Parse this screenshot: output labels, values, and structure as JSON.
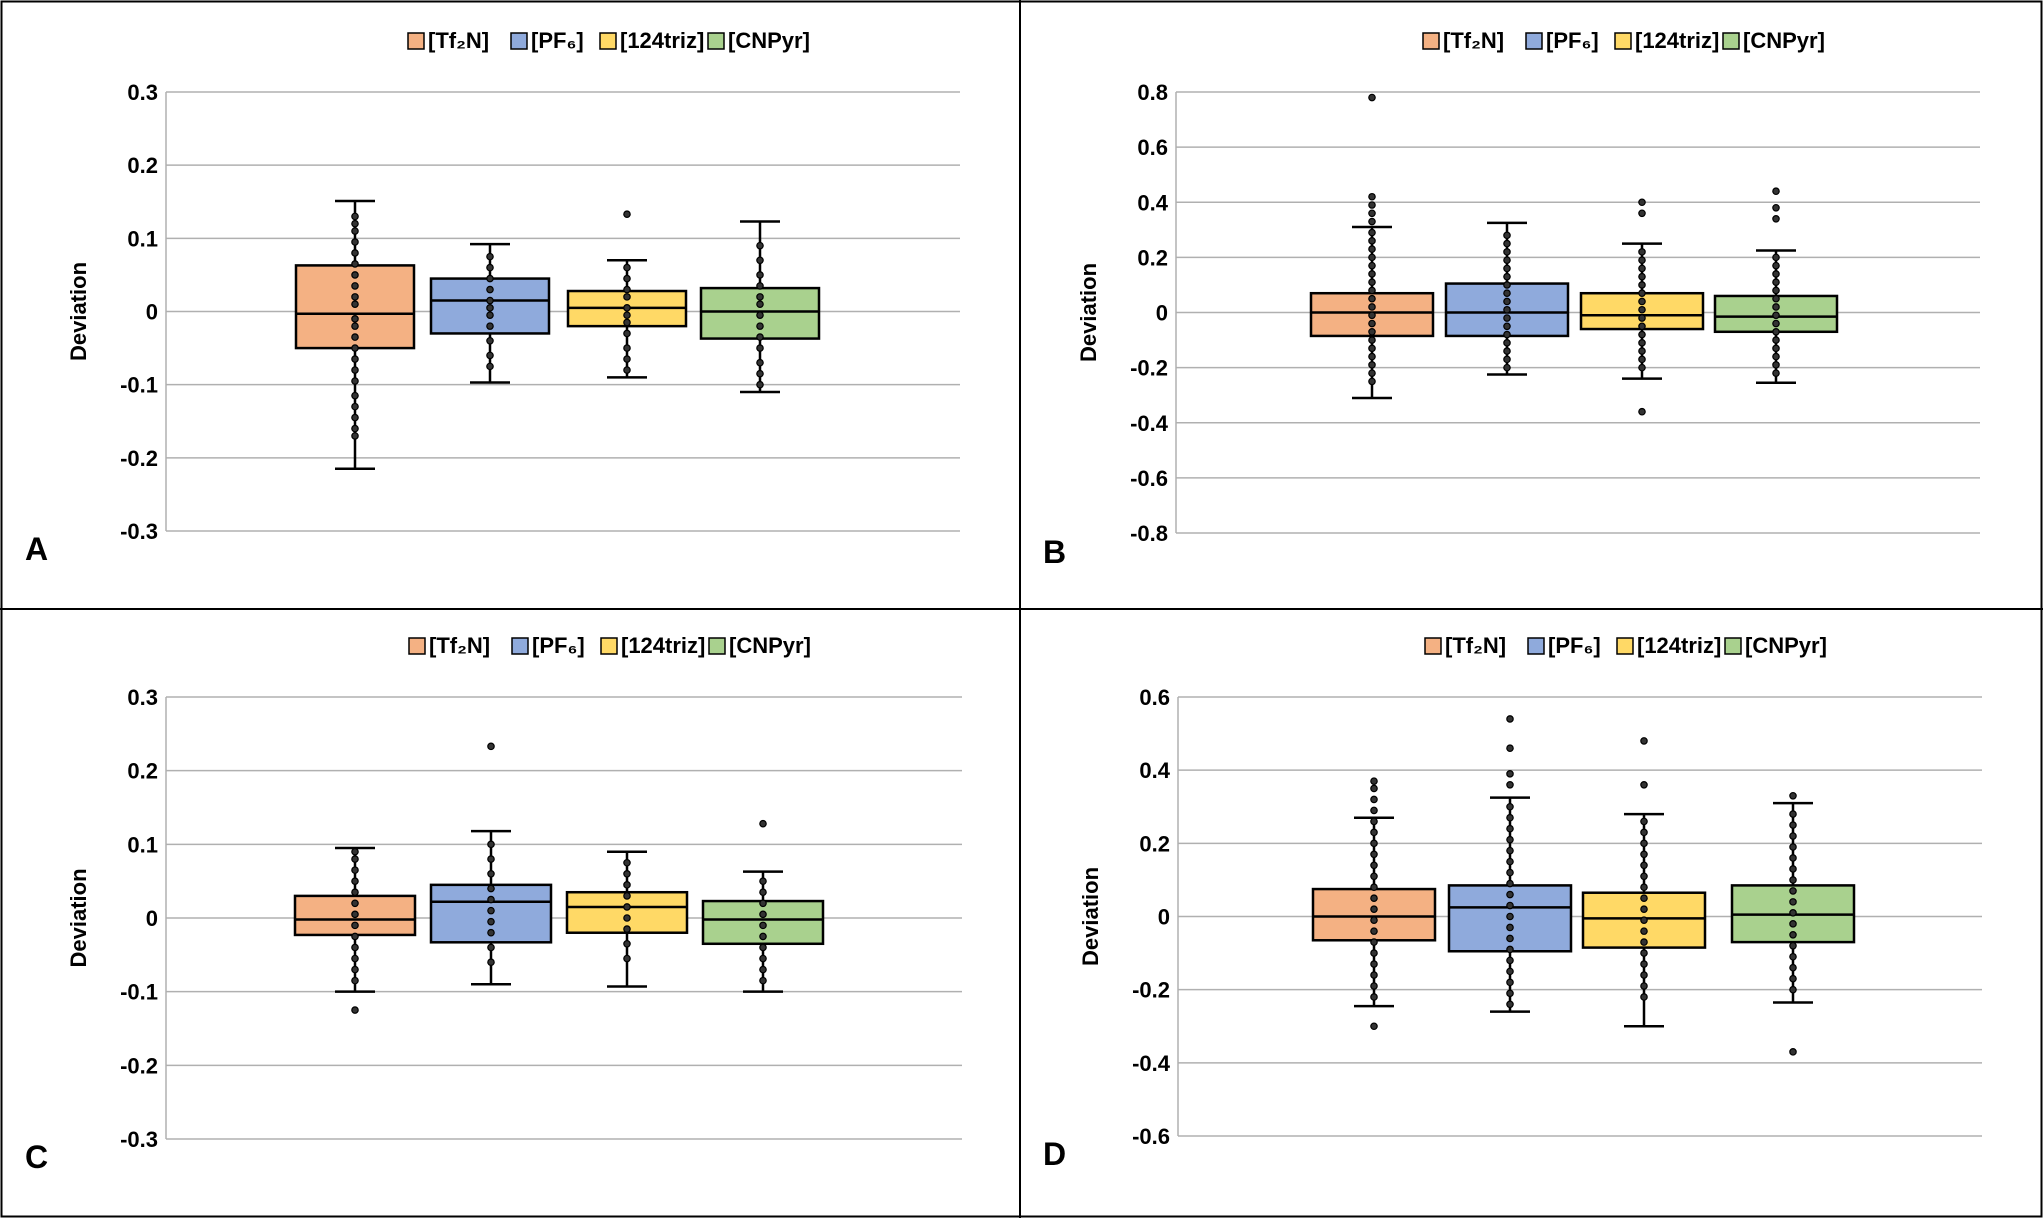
{
  "legend": [
    {
      "label": "[Tf₂N]",
      "color": "#f4b183"
    },
    {
      "label": "[PF₆]",
      "color": "#8faadc"
    },
    {
      "label": "[124triz]",
      "color": "#ffd966"
    },
    {
      "label": "[CNPyr]",
      "color": "#a9d18e"
    }
  ],
  "chart_data": [
    {
      "panel": "A",
      "type": "box",
      "ylabel": "Deviation",
      "ylim": [
        -0.3,
        0.3
      ],
      "yticks": [
        "0.3",
        "0.2",
        "0.1",
        "0",
        "-0.1",
        "-0.2",
        "-0.3"
      ],
      "grid": true,
      "legend_position": "top",
      "series": [
        {
          "name": "[Tf₂N]",
          "whisker_low": -0.215,
          "q1": -0.05,
          "median": -0.003,
          "q3": 0.063,
          "whisker_high": 0.151,
          "points": [
            0.13,
            0.12,
            0.11,
            0.095,
            0.08,
            0.065,
            0.05,
            0.035,
            0.02,
            0.01,
            -0.01,
            -0.02,
            -0.035,
            -0.05,
            -0.065,
            -0.08,
            -0.095,
            -0.115,
            -0.13,
            -0.145,
            -0.16,
            -0.17
          ]
        },
        {
          "name": "[PF₆]",
          "whisker_low": -0.097,
          "q1": -0.03,
          "median": 0.015,
          "q3": 0.045,
          "whisker_high": 0.092,
          "points": [
            0.075,
            0.06,
            0.045,
            0.03,
            0.015,
            0.005,
            -0.005,
            -0.02,
            -0.04,
            -0.06,
            -0.075
          ]
        },
        {
          "name": "[124triz]",
          "whisker_low": -0.09,
          "q1": -0.02,
          "median": 0.005,
          "q3": 0.028,
          "whisker_high": 0.07,
          "points": [
            0.133,
            0.06,
            0.045,
            0.03,
            0.02,
            0.005,
            -0.005,
            -0.015,
            -0.03,
            -0.05,
            -0.065,
            -0.08
          ]
        },
        {
          "name": "[CNPyr]",
          "whisker_low": -0.11,
          "q1": -0.037,
          "median": 0.0,
          "q3": 0.032,
          "whisker_high": 0.123,
          "points": [
            0.09,
            0.07,
            0.05,
            0.035,
            0.02,
            0.01,
            -0.005,
            -0.02,
            -0.035,
            -0.05,
            -0.07,
            -0.085,
            -0.1
          ]
        }
      ]
    },
    {
      "panel": "B",
      "type": "box",
      "ylabel": "Deviation",
      "ylim": [
        -0.8,
        0.8
      ],
      "yticks": [
        "0.8",
        "0.6",
        "0.4",
        "0.2",
        "0",
        "-0.2",
        "-0.4",
        "-0.6",
        "-0.8"
      ],
      "grid": true,
      "legend_position": "top",
      "series": [
        {
          "name": "[Tf₂N]",
          "whisker_low": -0.31,
          "q1": -0.085,
          "median": 0.0,
          "q3": 0.07,
          "whisker_high": 0.31,
          "points": [
            0.78,
            0.42,
            0.39,
            0.36,
            0.33,
            0.29,
            0.26,
            0.23,
            0.2,
            0.17,
            0.14,
            0.11,
            0.08,
            0.05,
            0.02,
            -0.01,
            -0.04,
            -0.07,
            -0.1,
            -0.13,
            -0.16,
            -0.19,
            -0.22,
            -0.25
          ]
        },
        {
          "name": "[PF₆]",
          "whisker_low": -0.225,
          "q1": -0.085,
          "median": 0.0,
          "q3": 0.105,
          "whisker_high": 0.325,
          "points": [
            0.28,
            0.25,
            0.22,
            0.19,
            0.16,
            0.13,
            0.1,
            0.07,
            0.04,
            0.01,
            -0.02,
            -0.05,
            -0.08,
            -0.11,
            -0.14,
            -0.17,
            -0.2
          ]
        },
        {
          "name": "[124triz]",
          "whisker_low": -0.24,
          "q1": -0.06,
          "median": -0.01,
          "q3": 0.07,
          "whisker_high": 0.25,
          "points": [
            0.4,
            0.36,
            0.22,
            0.19,
            0.16,
            0.13,
            0.1,
            0.07,
            0.04,
            0.01,
            -0.02,
            -0.05,
            -0.08,
            -0.11,
            -0.14,
            -0.17,
            -0.2,
            -0.36
          ]
        },
        {
          "name": "[CNPyr]",
          "whisker_low": -0.255,
          "q1": -0.07,
          "median": -0.015,
          "q3": 0.06,
          "whisker_high": 0.225,
          "points": [
            0.44,
            0.38,
            0.34,
            0.2,
            0.17,
            0.14,
            0.11,
            0.08,
            0.05,
            0.02,
            -0.01,
            -0.04,
            -0.07,
            -0.1,
            -0.13,
            -0.16,
            -0.19,
            -0.22
          ]
        }
      ]
    },
    {
      "panel": "C",
      "type": "box",
      "ylabel": "Deviation",
      "ylim": [
        -0.3,
        0.3
      ],
      "yticks": [
        "0.3",
        "0.2",
        "0.1",
        "0",
        "-0.1",
        "-0.2",
        "-0.3"
      ],
      "grid": true,
      "legend_position": "top",
      "series": [
        {
          "name": "[Tf₂N]",
          "whisker_low": -0.1,
          "q1": -0.023,
          "median": -0.002,
          "q3": 0.03,
          "whisker_high": 0.095,
          "points": [
            0.09,
            0.08,
            0.065,
            0.05,
            0.035,
            0.02,
            0.005,
            -0.01,
            -0.025,
            -0.04,
            -0.055,
            -0.07,
            -0.085,
            -0.125
          ]
        },
        {
          "name": "[PF₆]",
          "whisker_low": -0.09,
          "q1": -0.033,
          "median": 0.022,
          "q3": 0.045,
          "whisker_high": 0.118,
          "points": [
            0.233,
            0.1,
            0.08,
            0.06,
            0.04,
            0.025,
            0.01,
            -0.005,
            -0.02,
            -0.04,
            -0.06
          ]
        },
        {
          "name": "[124triz]",
          "whisker_low": -0.093,
          "q1": -0.02,
          "median": 0.015,
          "q3": 0.035,
          "whisker_high": 0.09,
          "points": [
            0.075,
            0.06,
            0.045,
            0.03,
            0.015,
            0.0,
            -0.015,
            -0.035,
            -0.055
          ]
        },
        {
          "name": "[CNPyr]",
          "whisker_low": -0.1,
          "q1": -0.035,
          "median": -0.002,
          "q3": 0.023,
          "whisker_high": 0.063,
          "points": [
            0.128,
            0.05,
            0.035,
            0.02,
            0.005,
            -0.01,
            -0.025,
            -0.04,
            -0.055,
            -0.07,
            -0.085
          ]
        }
      ]
    },
    {
      "panel": "D",
      "type": "box",
      "ylabel": "Deviation",
      "ylim": [
        -0.6,
        0.6
      ],
      "yticks": [
        "0.6",
        "0.4",
        "0.2",
        "0",
        "-0.2",
        "-0.4",
        "-0.6"
      ],
      "grid": true,
      "legend_position": "top",
      "series": [
        {
          "name": "[Tf₂N]",
          "whisker_low": -0.245,
          "q1": -0.065,
          "median": 0.0,
          "q3": 0.075,
          "whisker_high": 0.27,
          "points": [
            0.37,
            0.35,
            0.32,
            0.29,
            0.26,
            0.23,
            0.2,
            0.17,
            0.14,
            0.11,
            0.08,
            0.05,
            0.02,
            -0.01,
            -0.04,
            -0.07,
            -0.1,
            -0.13,
            -0.16,
            -0.19,
            -0.22,
            -0.3
          ]
        },
        {
          "name": "[PF₆]",
          "whisker_low": -0.26,
          "q1": -0.095,
          "median": 0.025,
          "q3": 0.085,
          "whisker_high": 0.325,
          "points": [
            0.54,
            0.46,
            0.39,
            0.36,
            0.3,
            0.27,
            0.24,
            0.21,
            0.18,
            0.15,
            0.12,
            0.09,
            0.06,
            0.03,
            0.0,
            -0.03,
            -0.06,
            -0.09,
            -0.12,
            -0.15,
            -0.18,
            -0.21,
            -0.24
          ]
        },
        {
          "name": "[124triz]",
          "whisker_low": -0.3,
          "q1": -0.085,
          "median": -0.005,
          "q3": 0.065,
          "whisker_high": 0.28,
          "points": [
            0.48,
            0.36,
            0.26,
            0.23,
            0.2,
            0.17,
            0.14,
            0.11,
            0.08,
            0.05,
            0.02,
            -0.01,
            -0.04,
            -0.07,
            -0.1,
            -0.13,
            -0.16,
            -0.19,
            -0.22
          ]
        },
        {
          "name": "[CNPyr]",
          "whisker_low": -0.235,
          "q1": -0.07,
          "median": 0.005,
          "q3": 0.085,
          "whisker_high": 0.31,
          "points": [
            0.33,
            0.28,
            0.25,
            0.22,
            0.19,
            0.16,
            0.13,
            0.1,
            0.07,
            0.04,
            0.01,
            -0.02,
            -0.05,
            -0.08,
            -0.11,
            -0.14,
            -0.17,
            -0.2,
            -0.37
          ]
        }
      ]
    }
  ]
}
